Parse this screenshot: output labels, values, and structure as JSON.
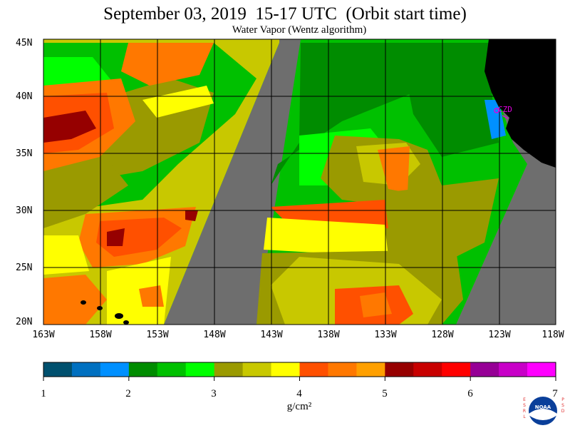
{
  "title": "September 03, 2019  15-17 UTC  (Orbit start time)",
  "subtitle": "Water Vapor (Wentz algorithm)",
  "map": {
    "lat_labels": [
      "45N",
      "40N",
      "35N",
      "30N",
      "25N",
      "20N"
    ],
    "lon_labels": [
      "163W",
      "158W",
      "153W",
      "148W",
      "143W",
      "138W",
      "133W",
      "128W",
      "123W",
      "118W"
    ],
    "station_label": "CZD",
    "colors": {
      "land": "#000000",
      "no_data": "#6e6e6e",
      "grid": "#000000",
      "station": "#e000e0"
    }
  },
  "colorbar": {
    "ticks": [
      "1",
      "2",
      "3",
      "4",
      "5",
      "6",
      "7"
    ],
    "colors": [
      "#00506e",
      "#0070c0",
      "#0090ff",
      "#008c00",
      "#00c000",
      "#00ff00",
      "#9a9a00",
      "#c8c800",
      "#ffff00",
      "#ff5000",
      "#ff7800",
      "#ffa000",
      "#960000",
      "#c80000",
      "#ff0000",
      "#960096",
      "#c800c8",
      "#ff00ff"
    ],
    "units": "g/cm²"
  },
  "logo": {
    "left_letters": "ESRL",
    "right_letters": "PSD",
    "center_text": "NOAA"
  }
}
